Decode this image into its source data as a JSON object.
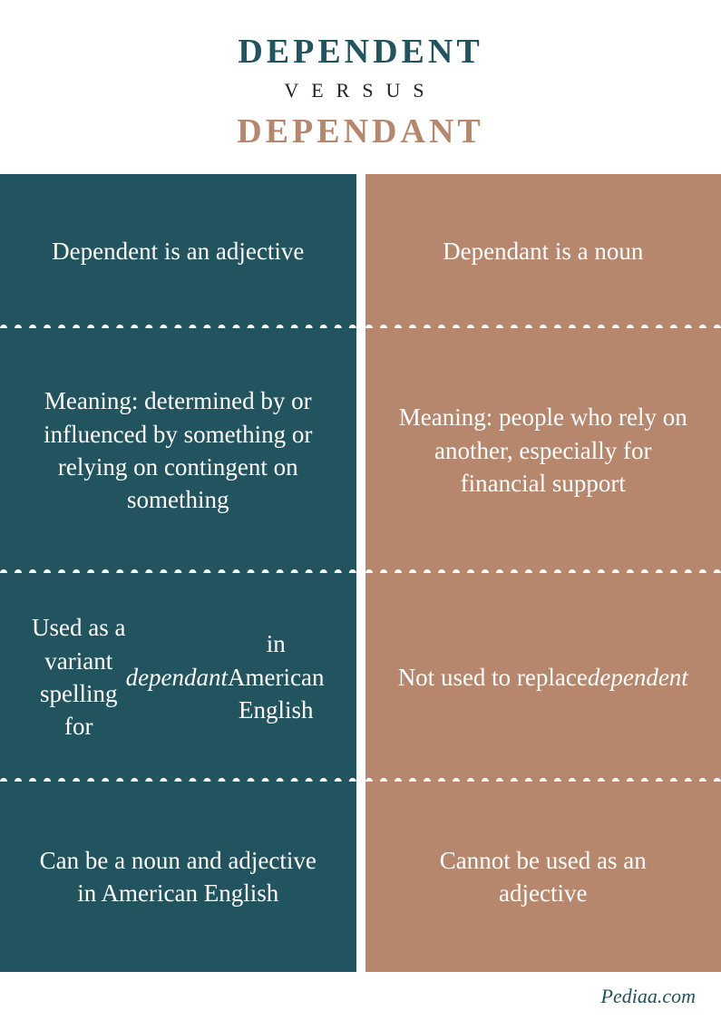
{
  "header": {
    "word1": "DEPENDENT",
    "versus": "VERSUS",
    "word2": "DEPENDANT",
    "color1": "#21545f",
    "color2": "#b7876d"
  },
  "columns": {
    "left": {
      "bg": "#21545f",
      "cells": [
        {
          "html": "Dependent is an adjective"
        },
        {
          "html": "Meaning: determined by or influenced by something or relying on contingent on something"
        },
        {
          "html": "Used as a variant spelling for <span class=\"italic\">dependant</span> in American English"
        },
        {
          "html": "Can be a noun and adjective in American English"
        }
      ]
    },
    "right": {
      "bg": "#b7876d",
      "cells": [
        {
          "html": "Dependant is a noun"
        },
        {
          "html": "Meaning: people who rely on another, especially for financial support"
        },
        {
          "html": "Not used to replace <span class=\"italic\">dependent</span>"
        },
        {
          "html": "Cannot be used as an adjective"
        }
      ]
    }
  },
  "footer": {
    "text": "Pediaa.com",
    "color": "#21545f"
  },
  "heights": [
    "h1",
    "h2",
    "h3",
    "h4"
  ]
}
